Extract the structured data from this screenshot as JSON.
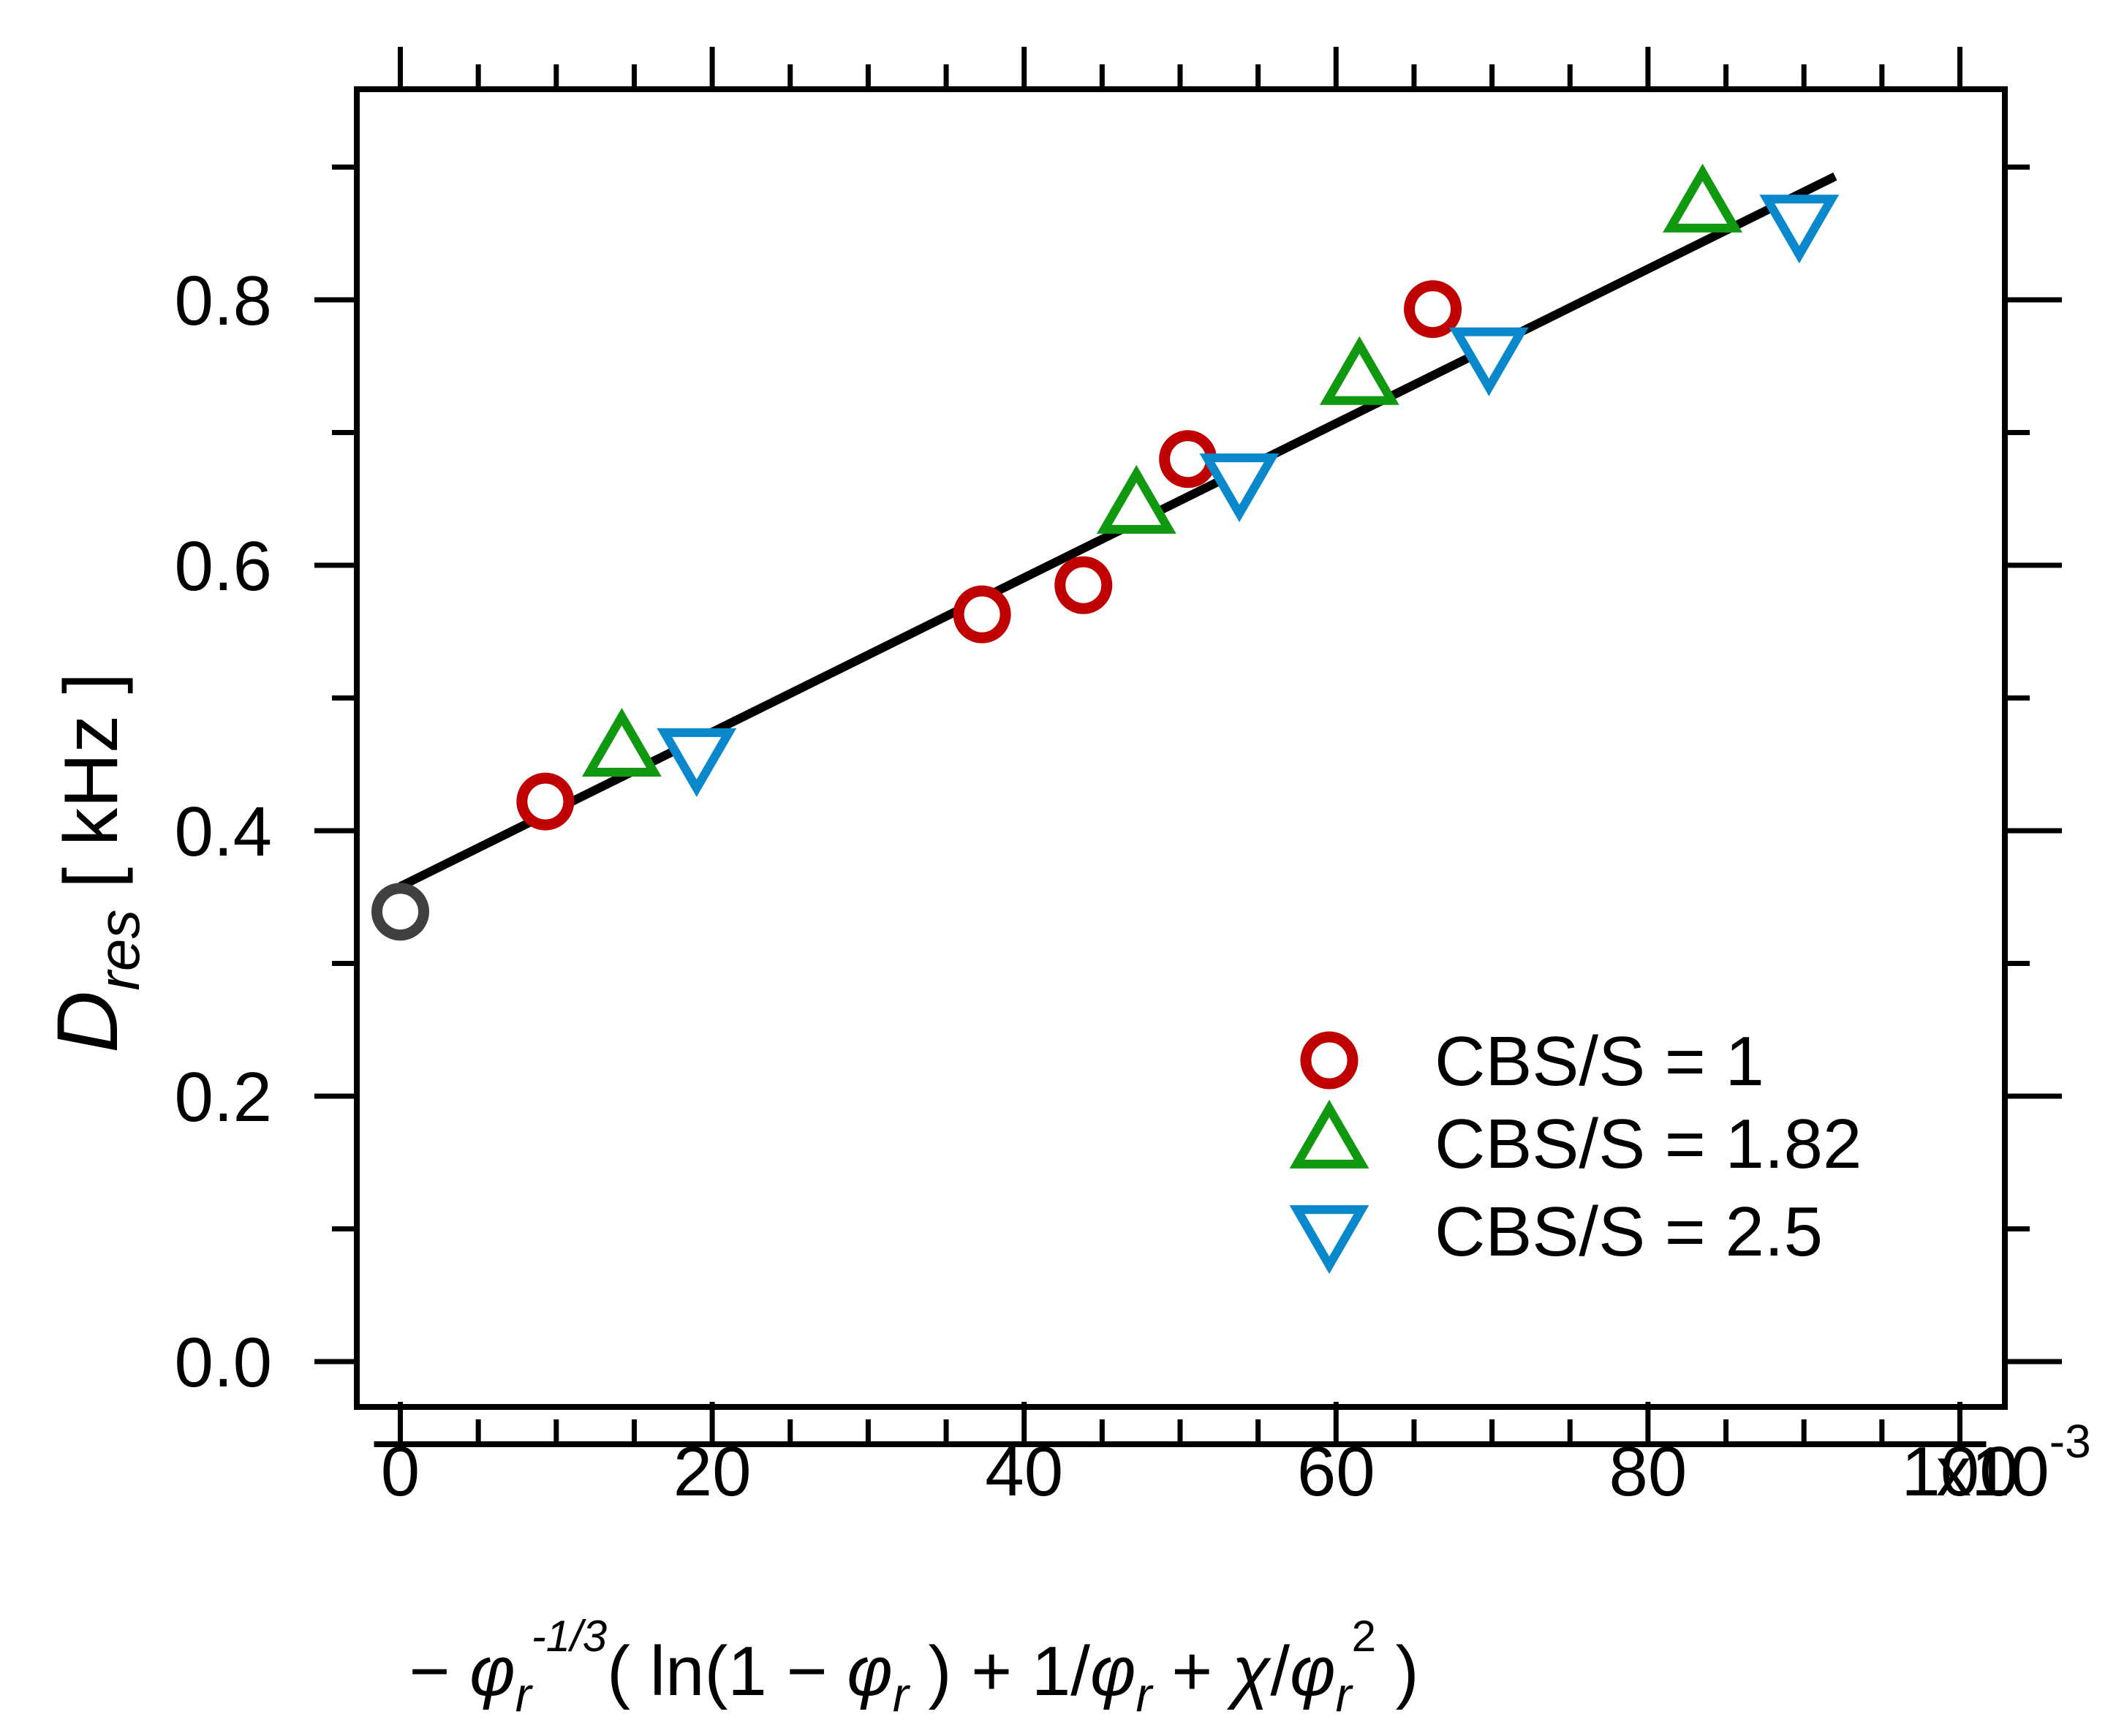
{
  "chart_data": {
    "type": "scatter",
    "title": "",
    "xlabel": "− φr^(-1/3)( ln(1 − φr) + 1/φr + χ/φr^2 )",
    "ylabel": "Dres [ kHz ]",
    "x_multiplier_label": "x10",
    "x_multiplier_exponent": "-3",
    "xlim": [
      -2.5,
      102.5
    ],
    "ylim": [
      -0.035,
      0.965
    ],
    "x_ticks": [
      0,
      20,
      40,
      60,
      80,
      100
    ],
    "x_tick_labels": [
      "0",
      "20",
      "40",
      "60",
      "80",
      "100"
    ],
    "x_minor_step": 5,
    "y_ticks": [
      0.0,
      0.2,
      0.4,
      0.6,
      0.8
    ],
    "y_tick_labels": [
      "0.0",
      "0.2",
      "0.4",
      "0.6",
      "0.8"
    ],
    "y_minor_step": 0.1,
    "grid": false,
    "legend_position": "bottom-right",
    "colors": {
      "series_1": "#c00000",
      "series_2": "#109810",
      "series_3": "#0a88cc",
      "reference": "#404040",
      "fit": "#000000"
    },
    "fit_line": {
      "x": [
        0,
        92
      ],
      "y": [
        0.358,
        0.893
      ]
    },
    "reference_point": {
      "x": 0,
      "y": 0.339,
      "marker": "circle"
    },
    "series": [
      {
        "name": "CBS/S = 1",
        "marker": "circle",
        "points": [
          {
            "x": 9.3,
            "y": 0.422
          },
          {
            "x": 37.3,
            "y": 0.563
          },
          {
            "x": 43.8,
            "y": 0.585
          },
          {
            "x": 50.5,
            "y": 0.68
          },
          {
            "x": 66.2,
            "y": 0.793
          }
        ]
      },
      {
        "name": "CBS/S = 1.82",
        "marker": "triangle-up",
        "points": [
          {
            "x": 14.2,
            "y": 0.46
          },
          {
            "x": 47.2,
            "y": 0.643
          },
          {
            "x": 61.5,
            "y": 0.74
          },
          {
            "x": 83.5,
            "y": 0.87
          }
        ]
      },
      {
        "name": "CBS/S = 2.5",
        "marker": "triangle-down",
        "points": [
          {
            "x": 19.0,
            "y": 0.458
          },
          {
            "x": 53.8,
            "y": 0.665
          },
          {
            "x": 69.8,
            "y": 0.76
          },
          {
            "x": 89.7,
            "y": 0.86
          }
        ]
      }
    ]
  }
}
